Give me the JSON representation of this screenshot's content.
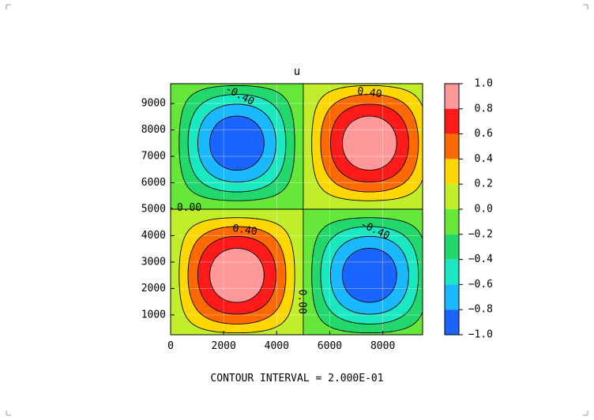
{
  "chart_data": {
    "type": "contour",
    "title": "u",
    "xlabel": "",
    "ylabel": "",
    "x_range": [
      0,
      9500
    ],
    "y_range": [
      250,
      9750
    ],
    "xlim": [
      0,
      9500
    ],
    "ylim": [
      250,
      9750
    ],
    "x_ticks": [
      0,
      2000,
      4000,
      6000,
      8000
    ],
    "y_ticks": [
      1000,
      2000,
      3000,
      4000,
      5000,
      6000,
      7000,
      8000,
      9000
    ],
    "grid": true,
    "function_hint": "u ≈ sin(pi*x/5000)*sin(pi*y/5000)",
    "levels": [
      -1.0,
      -0.8,
      -0.6,
      -0.4,
      -0.2,
      0.0,
      0.2,
      0.4,
      0.6,
      0.8,
      1.0
    ],
    "colorbar": {
      "tick_labels": [
        "1.0",
        "0.8",
        "0.6",
        "0.4",
        "0.2",
        "0.0",
        "−0.2",
        "−0.4",
        "−0.6",
        "−0.8",
        "−1.0"
      ],
      "band_colors": [
        "#ff9999",
        "#ff1a1a",
        "#ff6a00",
        "#ffd700",
        "#c0ee2a",
        "#66e83a",
        "#22d76c",
        "#1ae8c0",
        "#1ab8ff",
        "#1a64ff"
      ]
    },
    "contour_labels": [
      {
        "text": "-0.40",
        "x": 2600,
        "y": 9300,
        "rotation": 28
      },
      {
        "text": "0.40",
        "x": 7500,
        "y": 9400,
        "rotation": 8
      },
      {
        "text": "0.00",
        "x": 700,
        "y": 5050,
        "rotation": 0
      },
      {
        "text": "0.40",
        "x": 2800,
        "y": 4200,
        "rotation": 8
      },
      {
        "text": "-0.40",
        "x": 7700,
        "y": 4200,
        "rotation": 25
      },
      {
        "text": "0.00",
        "x": 4950,
        "y": 1500,
        "rotation": 90
      }
    ],
    "annotation": "CONTOUR INTERVAL = 2.000E-01",
    "legend": "right"
  }
}
